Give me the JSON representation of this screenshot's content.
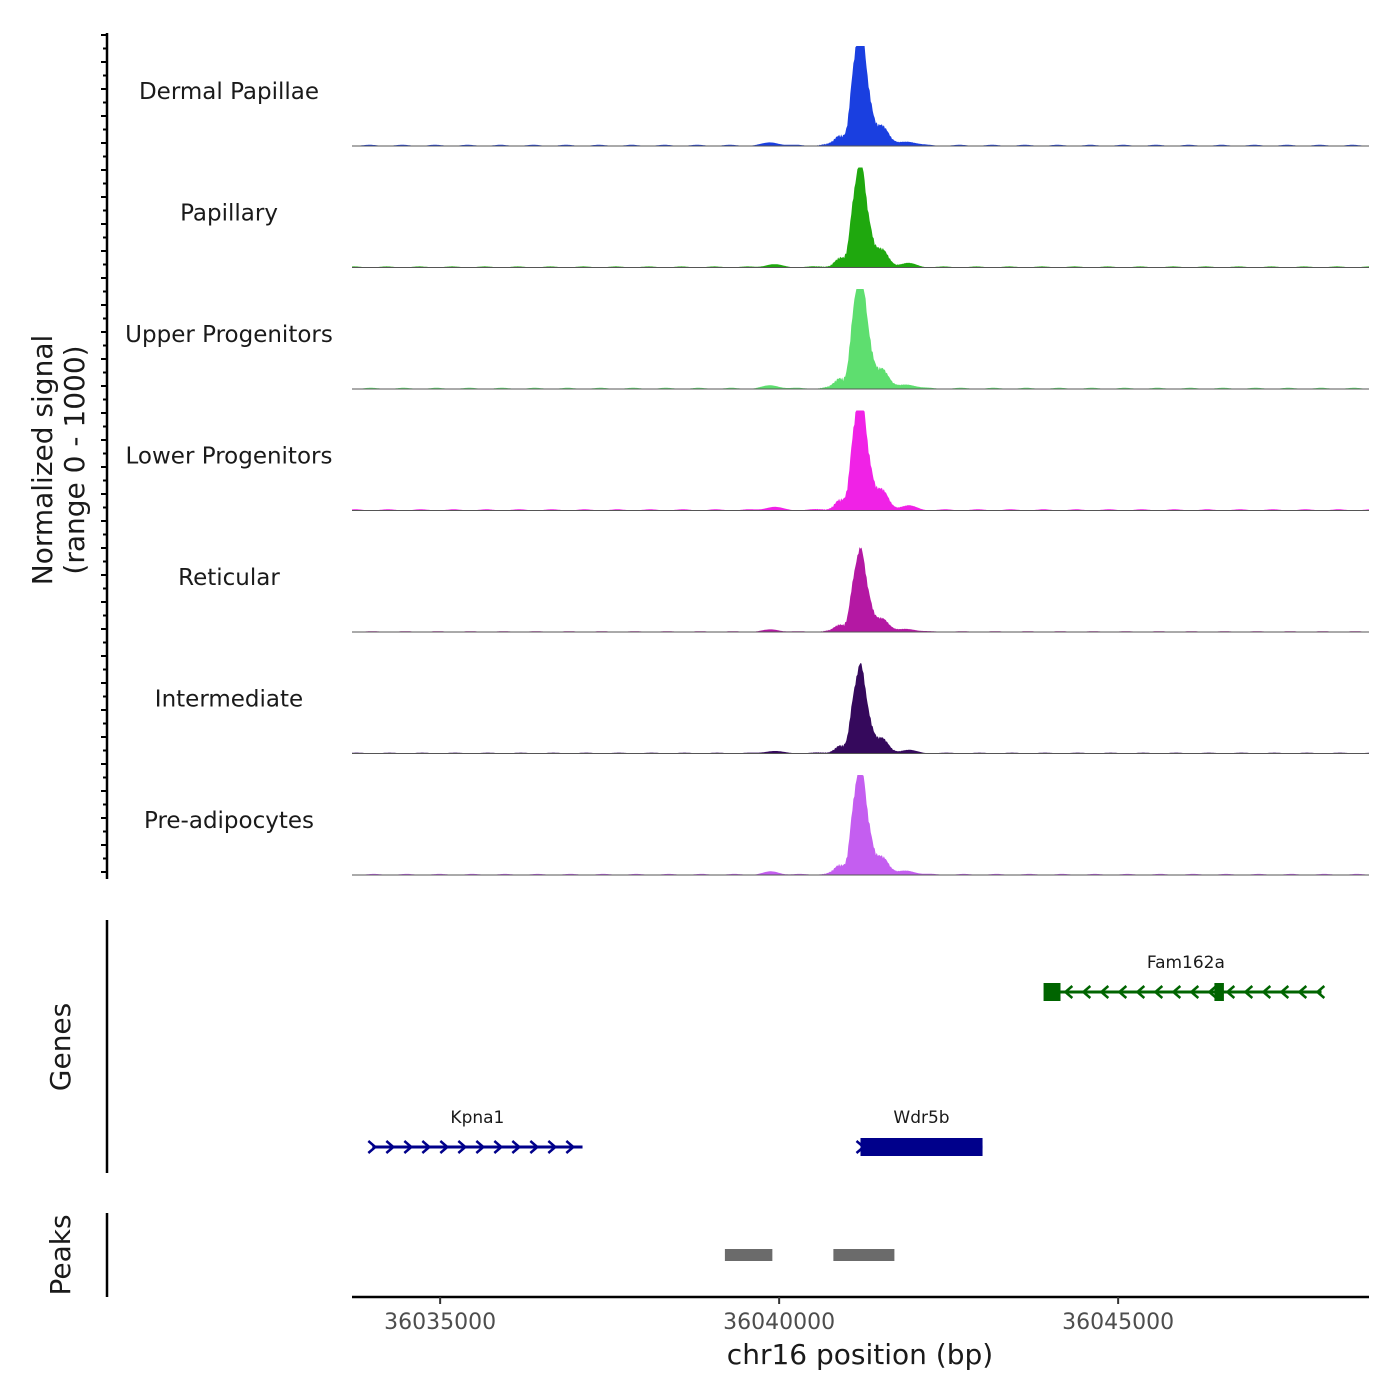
{
  "chart_data": {
    "type": "area",
    "title": "",
    "xlabel": "chr16 position (bp)",
    "ylabel_line1": "Normalized signal",
    "ylabel_line2": "(range 0 - 1000)",
    "xlim": [
      36033700,
      36048700
    ],
    "ylim": [
      0,
      1000
    ],
    "x_ticks": [
      {
        "value": 36035000,
        "label": "36035000"
      },
      {
        "value": 36040000,
        "label": "36040000"
      },
      {
        "value": 36045000,
        "label": "36045000"
      }
    ],
    "peak_center": 36041200,
    "tracks": [
      {
        "name": "Dermal Papillae",
        "color": "#1a3fe0",
        "max": 1000
      },
      {
        "name": "Papillary",
        "color": "#1fa80e",
        "max": 880
      },
      {
        "name": "Upper Progenitors",
        "color": "#5ede6f",
        "max": 1000
      },
      {
        "name": "Lower Progenitors",
        "color": "#f022e6",
        "max": 1000
      },
      {
        "name": "Reticular",
        "color": "#b418a3",
        "max": 680
      },
      {
        "name": "Intermediate",
        "color": "#35095c",
        "max": 730
      },
      {
        "name": "Pre-adipocytes",
        "color": "#c45ef0",
        "max": 920
      }
    ],
    "genes_panel": {
      "title": "Genes",
      "genes": [
        {
          "name": "Fam162a",
          "start": 36044000,
          "end": 36048000,
          "strand": "-",
          "color": "#006400",
          "row": 0,
          "exons": [
            [
              36043900,
              36044150
            ],
            [
              36046420,
              36046560
            ]
          ]
        },
        {
          "name": "Kpna1",
          "start": 36034000,
          "end": 36037100,
          "strand": "+",
          "color": "#00008b",
          "row": 1,
          "exons": []
        },
        {
          "name": "Wdr5b",
          "start": 36041200,
          "end": 36043000,
          "strand": "+",
          "color": "#00008b",
          "row": 1,
          "exons": [
            [
              36041200,
              36043000
            ]
          ]
        }
      ]
    },
    "peaks_panel": {
      "title": "Peaks",
      "color": "#6b6b6b",
      "peaks": [
        [
          36039200,
          36039900
        ],
        [
          36040800,
          36041700
        ]
      ]
    }
  }
}
